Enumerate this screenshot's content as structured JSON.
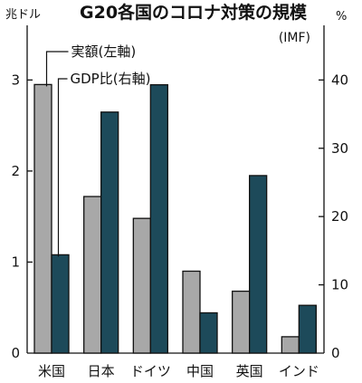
{
  "chart_data": {
    "type": "bar",
    "title": "G20各国のコロナ対策の規模",
    "source": "(IMF)",
    "y_left_unit": "兆ドル",
    "y_right_unit": "%",
    "y_left_lim": [
      0,
      3.6
    ],
    "y_right_lim": [
      0,
      48
    ],
    "y_left_ticks": [
      "0",
      "1",
      "2",
      "3"
    ],
    "y_right_ticks": [
      "0",
      "10",
      "20",
      "30",
      "40"
    ],
    "categories": [
      "米国",
      "日本",
      "ドイツ",
      "中国",
      "英国",
      "インド"
    ],
    "series": [
      {
        "name": "実額(左軸)",
        "axis": "left",
        "color": "#a8a8a8",
        "values": [
          2.95,
          1.72,
          1.48,
          0.9,
          0.68,
          0.18
        ]
      },
      {
        "name": "GDP比(右軸)",
        "axis": "right",
        "color": "#1d4a5a",
        "values": [
          14.4,
          35.3,
          39.3,
          5.9,
          26.0,
          7.0
        ]
      }
    ],
    "grid": false,
    "legend": "top-left"
  }
}
